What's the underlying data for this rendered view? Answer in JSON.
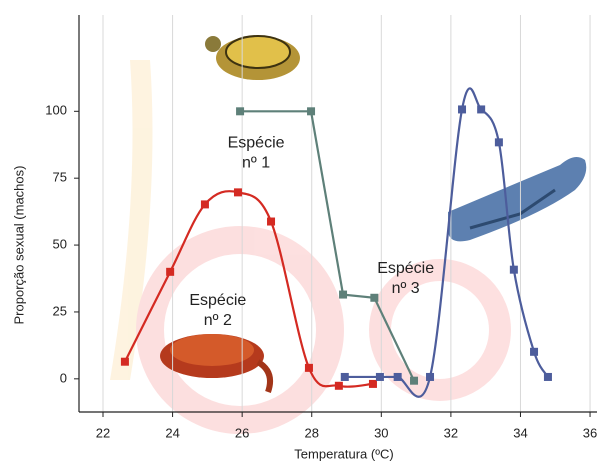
{
  "chart_data": {
    "type": "line",
    "x_label": "Temperatura  (ºC)",
    "y_label": "Proporção sexual (machos)",
    "xlim": [
      21.31,
      36.2
    ],
    "ylim": [
      -12.4,
      136
    ],
    "xticks": [
      22,
      24,
      26,
      28,
      30,
      32,
      34,
      36
    ],
    "yticks": [
      0,
      25,
      50,
      75,
      100
    ],
    "grid": "x",
    "series": [
      {
        "color": "#5e8079",
        "smooth": false,
        "x": [
          25.94,
          27.98,
          28.9,
          29.8,
          30.94
        ],
        "values": [
          100,
          100,
          31.5,
          30.3,
          -0.7
        ]
      },
      {
        "color": "#d42a22",
        "smooth": true,
        "x": [
          22.63,
          23.93,
          24.93,
          25.88,
          26.83,
          27.92,
          28.78,
          29.76
        ],
        "values": [
          6.4,
          40,
          65.2,
          69.7,
          58.8,
          4.1,
          -2.6,
          -1.9
        ]
      },
      {
        "color": "#4d5d9c",
        "smooth": true,
        "x": [
          28.95,
          29.96,
          30.47,
          31.4,
          32.32,
          32.87,
          33.38,
          33.81,
          34.39,
          34.79
        ],
        "values": [
          0.7,
          0.7,
          0.7,
          0.7,
          100.7,
          100.7,
          88.4,
          40.8,
          10.1,
          0.7
        ]
      }
    ],
    "annotations": [
      {
        "text": [
          "Espécie",
          "nº 1"
        ],
        "x": 26.4,
        "y": 88
      },
      {
        "text": [
          "Espécie",
          "nº 2"
        ],
        "x": 25.3,
        "y": 29
      },
      {
        "text": [
          "Espécie",
          "nº 3"
        ],
        "x": 30.7,
        "y": 41
      }
    ]
  }
}
